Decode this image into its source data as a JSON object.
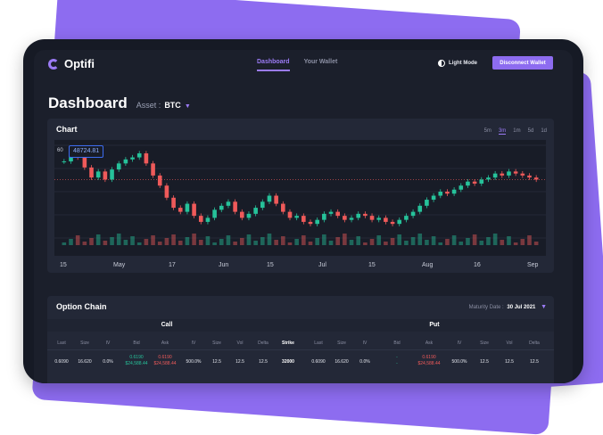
{
  "app": {
    "name": "Optifi"
  },
  "nav": {
    "links": [
      {
        "label": "Dashboard",
        "active": true
      },
      {
        "label": "Your Wallet",
        "active": false
      }
    ],
    "light_mode": "Light Mode",
    "wallet_button": "Disconnect Wallet"
  },
  "header": {
    "title": "Dashboard",
    "asset_label": "Asset :",
    "asset_value": "BTC"
  },
  "chart": {
    "title": "Chart",
    "timeframes": [
      "5m",
      "3m",
      "1m",
      "5d",
      "1d"
    ],
    "active_timeframe": "3m",
    "price_tag": "48724.81",
    "y_label": "60",
    "x_labels": [
      "15",
      "May",
      "17",
      "Jun",
      "15",
      "Jul",
      "15",
      "Aug",
      "16",
      "Sep"
    ]
  },
  "chart_data": {
    "type": "candlestick",
    "x_ticks": [
      "15",
      "May",
      "17",
      "Jun",
      "15",
      "Jul",
      "15",
      "Aug",
      "16",
      "Sep"
    ],
    "current_price": 48724.81,
    "close_series": [
      58,
      61,
      60,
      55,
      50,
      53,
      49,
      54,
      57,
      59,
      60,
      62,
      57,
      51,
      46,
      40,
      35,
      33,
      37,
      31,
      28,
      30,
      34,
      36,
      38,
      33,
      30,
      32,
      35,
      38,
      41,
      37,
      33,
      30,
      31,
      28,
      27,
      29,
      32,
      33,
      31,
      29,
      30,
      32,
      31,
      29,
      30,
      28,
      27,
      29,
      31,
      33,
      36,
      39,
      41,
      43,
      42,
      44,
      46,
      48,
      47,
      49,
      50,
      52,
      51,
      53,
      52,
      51,
      50,
      49
    ]
  },
  "options": {
    "title": "Option Chain",
    "maturity_label": "Maturity Date :",
    "maturity_value": "30 Jul 2021",
    "call_label": "Call",
    "put_label": "Put",
    "call_headers": [
      "Last",
      "Size",
      "IV",
      "Bid",
      "Ask",
      "IV",
      "Size",
      "Vol",
      "Delta"
    ],
    "strike_header": "Strike",
    "put_headers": [
      "Last",
      "Size",
      "IV",
      "Bid",
      "Ask",
      "IV",
      "Size",
      "Vol",
      "Delta"
    ],
    "row": {
      "call": {
        "last": "0.6090",
        "size": "16.620",
        "iv": "0.0%",
        "bid": "0.6190",
        "bid_sub": "$24,588.44",
        "ask": "0.6190",
        "ask_sub": "$24,588.44",
        "iv2": "500.0%",
        "size2": "12.5",
        "vol": "12.5",
        "delta": "12.5"
      },
      "strike": "32000",
      "put": {
        "last": "0.6090",
        "size": "16.620",
        "iv": "0.0%",
        "bid": "-",
        "bid_sub": "-",
        "ask": "0.6190",
        "ask_sub": "$24,588.44",
        "iv2": "500.0%",
        "size2": "12.5",
        "vol": "12.5",
        "delta": "12.5"
      }
    }
  },
  "colors": {
    "accent": "#8d6cf0",
    "up": "#26c29a",
    "down": "#ef5a5a",
    "bg": "#1b1f2b"
  }
}
